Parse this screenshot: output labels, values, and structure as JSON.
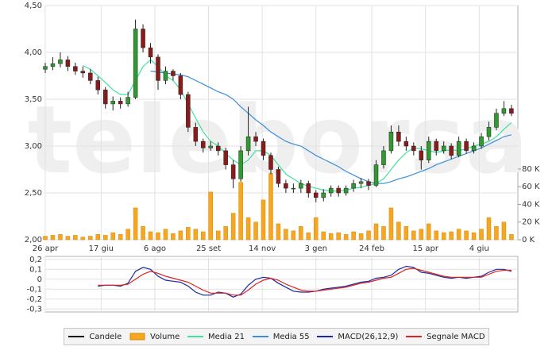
{
  "chart_data": [
    {
      "type": "candlestick",
      "watermark": "teleborsa",
      "x": [
        0,
        7,
        14,
        21,
        28,
        35,
        42,
        49,
        56,
        63,
        70,
        77,
        84,
        91,
        98,
        105,
        112,
        119,
        126,
        133,
        140,
        147,
        154,
        161,
        168,
        175,
        182,
        189,
        196,
        203,
        210,
        217,
        224,
        231,
        238,
        245,
        252,
        259,
        266,
        273,
        280,
        287,
        294,
        301,
        308,
        315,
        322,
        329,
        336,
        343,
        350,
        357,
        364,
        371,
        378,
        385,
        392,
        399,
        406,
        413,
        420,
        427,
        434
      ],
      "xlim": [
        0,
        440
      ],
      "xticks": [
        {
          "value": 0,
          "label": "26 apr"
        },
        {
          "value": 52,
          "label": "17 giu"
        },
        {
          "value": 102,
          "label": "6 ago"
        },
        {
          "value": 152,
          "label": "25 set"
        },
        {
          "value": 202,
          "label": "14 nov"
        },
        {
          "value": 252,
          "label": "3 gen"
        },
        {
          "value": 304,
          "label": "24 feb"
        },
        {
          "value": 354,
          "label": "15 apr"
        },
        {
          "value": 404,
          "label": "4 giu"
        }
      ],
      "ylim": [
        2,
        4.5
      ],
      "yticks": [
        {
          "value": 2,
          "label": "2,00"
        },
        {
          "value": 2.5,
          "label": "2,50"
        },
        {
          "value": 3,
          "label": "3,00"
        },
        {
          "value": 3.5,
          "label": "3,50"
        },
        {
          "value": 4,
          "label": "4,00"
        },
        {
          "value": 4.5,
          "label": "4,50"
        }
      ],
      "y2lim": [
        0,
        265000
      ],
      "y2ticks": [
        {
          "value": 0,
          "label": "0 K"
        },
        {
          "value": 20000,
          "label": "20 K"
        },
        {
          "value": 40000,
          "label": "40 K"
        },
        {
          "value": 60000,
          "label": "60 K"
        },
        {
          "value": 80000,
          "label": "80 K"
        }
      ],
      "grid": true,
      "series": [
        {
          "name": "Candele",
          "type": "candlestick",
          "color": "#000000",
          "up_color": "#2f9a2f",
          "down_color": "#8b1a1a",
          "open": [
            3.82,
            3.85,
            3.88,
            3.92,
            3.85,
            3.8,
            3.78,
            3.7,
            3.6,
            3.45,
            3.48,
            3.45,
            3.52,
            4.25,
            4.05,
            3.95,
            3.7,
            3.8,
            3.75,
            3.55,
            3.2,
            3.05,
            2.98,
            3.0,
            2.95,
            2.8,
            2.65,
            2.95,
            3.1,
            3.05,
            2.9,
            2.75,
            2.6,
            2.55,
            2.55,
            2.6,
            2.5,
            2.45,
            2.5,
            2.55,
            2.5,
            2.55,
            2.6,
            2.62,
            2.58,
            2.8,
            2.95,
            3.15,
            3.05,
            3.0,
            2.95,
            2.85,
            3.05,
            2.95,
            3.0,
            2.9,
            3.05,
            2.95,
            3.0,
            3.1,
            3.2,
            3.35,
            3.4
          ],
          "high": [
            3.89,
            3.95,
            4.0,
            3.96,
            3.89,
            3.85,
            3.82,
            3.74,
            3.63,
            3.53,
            3.52,
            3.58,
            4.35,
            4.3,
            4.1,
            3.98,
            3.85,
            3.82,
            3.78,
            3.58,
            3.25,
            3.08,
            3.05,
            3.04,
            2.98,
            2.85,
            3.0,
            3.42,
            3.15,
            3.08,
            2.93,
            2.78,
            2.64,
            2.6,
            2.64,
            2.63,
            2.53,
            2.54,
            2.58,
            2.58,
            2.58,
            2.64,
            2.66,
            2.65,
            2.85,
            3.0,
            3.22,
            3.22,
            3.1,
            3.04,
            3.0,
            3.1,
            3.08,
            3.05,
            3.03,
            3.1,
            3.08,
            3.04,
            3.14,
            3.26,
            3.4,
            3.48,
            3.44
          ],
          "low": [
            3.78,
            3.81,
            3.84,
            3.8,
            3.76,
            3.73,
            3.66,
            3.55,
            3.4,
            3.38,
            3.4,
            3.42,
            3.5,
            4.0,
            3.88,
            3.6,
            3.66,
            3.7,
            3.5,
            3.15,
            3.0,
            2.93,
            2.95,
            2.9,
            2.75,
            2.55,
            2.62,
            2.9,
            3.0,
            2.85,
            2.7,
            2.56,
            2.5,
            2.5,
            2.5,
            2.45,
            2.4,
            2.41,
            2.46,
            2.46,
            2.47,
            2.51,
            2.55,
            2.53,
            2.56,
            2.76,
            2.92,
            3.0,
            2.95,
            2.9,
            2.75,
            2.82,
            2.9,
            2.92,
            2.86,
            2.88,
            2.92,
            2.92,
            2.97,
            3.06,
            3.17,
            3.32,
            3.32
          ],
          "close": [
            3.85,
            3.88,
            3.92,
            3.85,
            3.8,
            3.78,
            3.7,
            3.6,
            3.45,
            3.48,
            3.45,
            3.52,
            4.25,
            4.05,
            3.95,
            3.7,
            3.8,
            3.75,
            3.55,
            3.2,
            3.05,
            2.98,
            3.0,
            2.95,
            2.8,
            2.65,
            2.95,
            3.1,
            3.05,
            2.9,
            2.75,
            2.6,
            2.55,
            2.55,
            2.6,
            2.5,
            2.45,
            2.5,
            2.55,
            2.5,
            2.55,
            2.6,
            2.62,
            2.58,
            2.8,
            2.95,
            3.15,
            3.05,
            3.0,
            2.95,
            2.85,
            3.05,
            2.95,
            3.0,
            2.9,
            3.05,
            2.95,
            3.0,
            3.1,
            3.2,
            3.35,
            3.4,
            3.35
          ]
        },
        {
          "name": "Volume",
          "type": "bar",
          "axis": "y2",
          "color": "#f5a623",
          "values": [
            4000,
            5000,
            6000,
            4000,
            5000,
            3000,
            4000,
            6000,
            5000,
            8000,
            6000,
            12000,
            36000,
            15000,
            9000,
            8000,
            12000,
            7000,
            10000,
            14000,
            12000,
            9000,
            54000,
            10000,
            15000,
            30000,
            65000,
            25000,
            20000,
            45000,
            75000,
            18000,
            12000,
            10000,
            15000,
            8000,
            25000,
            9000,
            7000,
            8000,
            6000,
            9000,
            7000,
            10000,
            18000,
            15000,
            36000,
            20000,
            15000,
            10000,
            12000,
            18000,
            10000,
            8000,
            9000,
            12000,
            10000,
            8000,
            12000,
            25000,
            15000,
            20000,
            6000
          ]
        },
        {
          "name": "Media 21",
          "type": "line",
          "color": "#3ee39a",
          "values": [
            null,
            null,
            null,
            null,
            null,
            3.86,
            3.82,
            3.75,
            3.68,
            3.6,
            3.55,
            3.55,
            3.7,
            3.85,
            3.92,
            3.85,
            3.75,
            3.7,
            3.6,
            3.45,
            3.3,
            3.15,
            3.05,
            3.0,
            2.92,
            2.85,
            2.8,
            2.85,
            2.95,
            2.95,
            2.9,
            2.8,
            2.7,
            2.65,
            2.6,
            2.57,
            2.55,
            2.53,
            2.52,
            2.52,
            2.53,
            2.55,
            2.56,
            2.58,
            2.6,
            2.65,
            2.75,
            2.85,
            2.93,
            2.98,
            2.97,
            2.95,
            2.93,
            2.95,
            2.96,
            2.95,
            2.97,
            3.0,
            3.02,
            3.05,
            3.1,
            3.18,
            3.25
          ]
        },
        {
          "name": "Media 55",
          "type": "line",
          "color": "#3b8ede",
          "values": [
            null,
            null,
            null,
            null,
            null,
            null,
            null,
            null,
            null,
            null,
            null,
            null,
            null,
            null,
            3.8,
            3.79,
            3.78,
            3.77,
            3.76,
            3.74,
            3.7,
            3.66,
            3.62,
            3.58,
            3.55,
            3.5,
            3.42,
            3.35,
            3.28,
            3.22,
            3.15,
            3.1,
            3.05,
            3.02,
            3.0,
            2.95,
            2.9,
            2.86,
            2.82,
            2.78,
            2.73,
            2.69,
            2.65,
            2.62,
            2.6,
            2.6,
            2.62,
            2.65,
            2.67,
            2.7,
            2.73,
            2.76,
            2.8,
            2.83,
            2.86,
            2.89,
            2.92,
            2.95,
            2.98,
            3.02,
            3.06,
            3.1,
            3.12
          ]
        }
      ]
    },
    {
      "type": "line",
      "ylim": [
        -0.33,
        0.23
      ],
      "yticks": [
        {
          "value": -0.3,
          "label": "-0,3"
        },
        {
          "value": -0.2,
          "label": "-0,2"
        },
        {
          "value": -0.1,
          "label": "-0,1"
        },
        0,
        {
          "value": 0.1,
          "label": "0,1"
        },
        {
          "value": 0.2,
          "label": "0,2"
        }
      ],
      "grid": true,
      "series": [
        {
          "name": "MACD(26,12,9)",
          "type": "line",
          "color": "#1a2aa0",
          "values": [
            null,
            null,
            null,
            null,
            null,
            null,
            null,
            -0.07,
            -0.06,
            -0.06,
            -0.07,
            -0.04,
            0.08,
            0.12,
            0.1,
            0.03,
            -0.01,
            -0.02,
            -0.03,
            -0.07,
            -0.13,
            -0.16,
            -0.16,
            -0.13,
            -0.14,
            -0.18,
            -0.15,
            -0.06,
            0.0,
            0.02,
            0.01,
            -0.04,
            -0.08,
            -0.12,
            -0.13,
            -0.13,
            -0.12,
            -0.1,
            -0.09,
            -0.08,
            -0.07,
            -0.05,
            -0.03,
            -0.02,
            0.01,
            0.02,
            0.04,
            0.1,
            0.13,
            0.12,
            0.07,
            0.06,
            0.04,
            0.02,
            0.01,
            0.02,
            0.01,
            0.02,
            0.03,
            0.07,
            0.1,
            0.1,
            0.08
          ]
        },
        {
          "name": "Segnale MACD",
          "type": "line",
          "color": "#dd2222",
          "values": [
            null,
            null,
            null,
            null,
            null,
            null,
            null,
            -0.06,
            -0.06,
            -0.06,
            -0.06,
            -0.05,
            0.0,
            0.05,
            0.08,
            0.06,
            0.03,
            0.01,
            -0.01,
            -0.03,
            -0.07,
            -0.11,
            -0.14,
            -0.14,
            -0.14,
            -0.16,
            -0.16,
            -0.11,
            -0.05,
            -0.01,
            0.01,
            -0.01,
            -0.05,
            -0.08,
            -0.11,
            -0.12,
            -0.12,
            -0.11,
            -0.1,
            -0.09,
            -0.08,
            -0.06,
            -0.04,
            -0.03,
            -0.01,
            0.01,
            0.02,
            0.06,
            0.1,
            0.11,
            0.09,
            0.07,
            0.05,
            0.03,
            0.02,
            0.02,
            0.02,
            0.02,
            0.02,
            0.05,
            0.08,
            0.09,
            0.09
          ]
        }
      ]
    }
  ]
}
